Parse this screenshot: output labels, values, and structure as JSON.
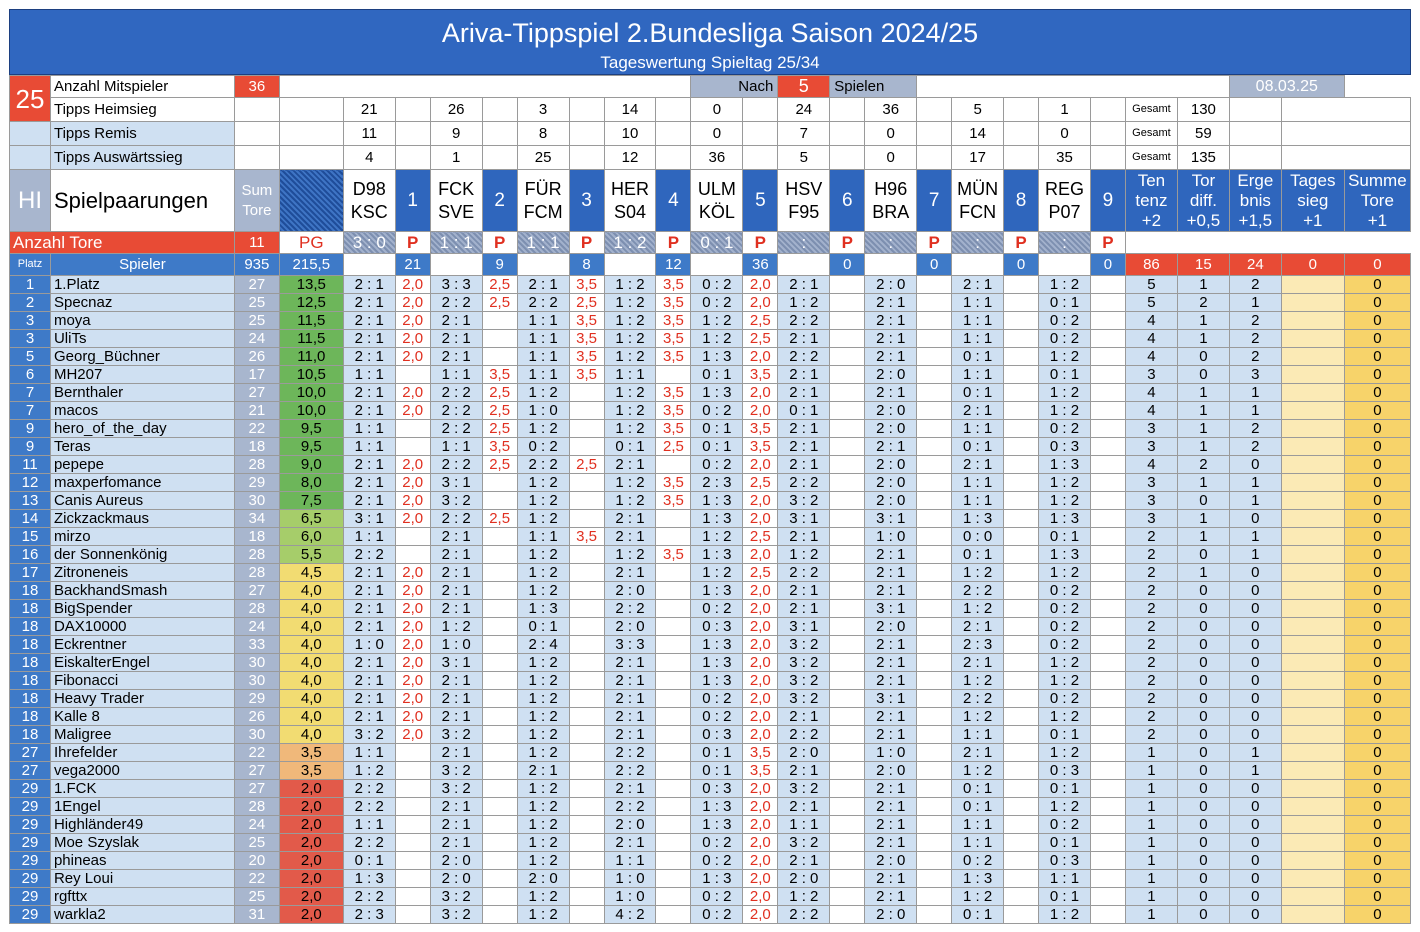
{
  "title": "Ariva-Tippspiel 2.Bundesliga Saison 2024/25",
  "subtitle": "Tageswertung Spieltag 25/34",
  "spieltag": "25",
  "info": {
    "mitspieler_label": "Anzahl Mitspieler",
    "mitspieler": "36",
    "nach": "Nach",
    "spiele_n": "5",
    "spiele": "Spielen",
    "date": "08.03.25",
    "heimsieg_label": "Tipps Heimsieg",
    "remis_label": "Tipps Remis",
    "auswaerts_label": "Tipps Auswärtssieg",
    "gesamt": "Gesamt",
    "hl": "HI",
    "paarungen": "Spielpaarungen",
    "sum_tore": "Sum Tore",
    "anzahl_tore": "Anzahl Tore",
    "tore_total": "11",
    "pg": "PG",
    "platz": "Platz",
    "spieler": "Spieler",
    "sum_total": "935",
    "pg_total": "215,5",
    "p": "P"
  },
  "tipps": {
    "heim": [
      "21",
      "26",
      "3",
      "14",
      "0",
      "24",
      "36",
      "5",
      "1"
    ],
    "remis": [
      "11",
      "9",
      "8",
      "10",
      "0",
      "7",
      "0",
      "14",
      "0"
    ],
    "aus": [
      "4",
      "1",
      "25",
      "12",
      "36",
      "5",
      "0",
      "17",
      "35"
    ],
    "gesamt": [
      "130",
      "59",
      "135"
    ]
  },
  "matches": [
    {
      "n": "1",
      "home": "D98",
      "away": "KSC",
      "res": "3 : 0",
      "pts": "21"
    },
    {
      "n": "2",
      "home": "FCK",
      "away": "SVE",
      "res": "1 : 1",
      "pts": "9"
    },
    {
      "n": "3",
      "home": "FÜR",
      "away": "FCM",
      "res": "1 : 1",
      "pts": "8"
    },
    {
      "n": "4",
      "home": "HER",
      "away": "S04",
      "res": "1 : 2",
      "pts": "12"
    },
    {
      "n": "5",
      "home": "ULM",
      "away": "KÖL",
      "res": "0 : 1",
      "pts": "36"
    },
    {
      "n": "6",
      "home": "HSV",
      "away": "F95",
      "res": ":",
      "pts": "0"
    },
    {
      "n": "7",
      "home": "H96",
      "away": "BRA",
      "res": ":",
      "pts": "0"
    },
    {
      "n": "8",
      "home": "MÜN",
      "away": "FCN",
      "res": ":",
      "pts": "0"
    },
    {
      "n": "9",
      "home": "REG",
      "away": "P07",
      "res": ":",
      "pts": "0"
    }
  ],
  "bonus_headers": [
    [
      "Ten",
      "tenz",
      "+2"
    ],
    [
      "Tor",
      "diff.",
      "+0,5"
    ],
    [
      "Erge",
      "bnis",
      "+1,5"
    ],
    [
      "Tages",
      "sieg",
      "+1"
    ],
    [
      "Summe",
      "Tore",
      "+1"
    ]
  ],
  "bonus_totals": [
    "86",
    "15",
    "24",
    "0",
    "0"
  ],
  "players": [
    [
      "1",
      "1.Platz",
      "27",
      "13,5",
      "2 : 1",
      "2,0",
      "3 : 3",
      "2,5",
      "2 : 1",
      "3,5",
      "1 : 2",
      "3,5",
      "0 : 2",
      "2,0",
      "2 : 1",
      "",
      "2 : 0",
      "",
      "2 : 1",
      "",
      "1 : 2",
      "",
      "5",
      "1",
      "2",
      "",
      "0"
    ],
    [
      "2",
      "Specnaz",
      "25",
      "12,5",
      "2 : 1",
      "2,0",
      "2 : 2",
      "2,5",
      "2 : 2",
      "2,5",
      "1 : 2",
      "3,5",
      "0 : 2",
      "2,0",
      "1 : 2",
      "",
      "2 : 1",
      "",
      "1 : 1",
      "",
      "0 : 1",
      "",
      "5",
      "2",
      "1",
      "",
      "0"
    ],
    [
      "3",
      "moya",
      "25",
      "11,5",
      "2 : 1",
      "2,0",
      "2 : 1",
      "",
      "1 : 1",
      "3,5",
      "1 : 2",
      "3,5",
      "1 : 2",
      "2,5",
      "2 : 2",
      "",
      "2 : 1",
      "",
      "1 : 1",
      "",
      "0 : 2",
      "",
      "4",
      "1",
      "2",
      "",
      "0"
    ],
    [
      "3",
      "UliTs",
      "24",
      "11,5",
      "2 : 1",
      "2,0",
      "2 : 1",
      "",
      "1 : 1",
      "3,5",
      "1 : 2",
      "3,5",
      "1 : 2",
      "2,5",
      "2 : 1",
      "",
      "2 : 1",
      "",
      "1 : 1",
      "",
      "0 : 2",
      "",
      "4",
      "1",
      "2",
      "",
      "0"
    ],
    [
      "5",
      "Georg_Büchner",
      "26",
      "11,0",
      "2 : 1",
      "2,0",
      "2 : 1",
      "",
      "1 : 1",
      "3,5",
      "1 : 2",
      "3,5",
      "1 : 3",
      "2,0",
      "2 : 2",
      "",
      "2 : 1",
      "",
      "0 : 1",
      "",
      "1 : 2",
      "",
      "4",
      "0",
      "2",
      "",
      "0"
    ],
    [
      "6",
      "MH207",
      "17",
      "10,5",
      "1 : 1",
      "",
      "1 : 1",
      "3,5",
      "1 : 1",
      "3,5",
      "1 : 1",
      "",
      "0 : 1",
      "3,5",
      "2 : 1",
      "",
      "2 : 0",
      "",
      "1 : 1",
      "",
      "0 : 1",
      "",
      "3",
      "0",
      "3",
      "",
      "0"
    ],
    [
      "7",
      "Bernthaler",
      "27",
      "10,0",
      "2 : 1",
      "2,0",
      "2 : 2",
      "2,5",
      "1 : 2",
      "",
      "1 : 2",
      "3,5",
      "1 : 3",
      "2,0",
      "2 : 1",
      "",
      "2 : 1",
      "",
      "0 : 1",
      "",
      "1 : 2",
      "",
      "4",
      "1",
      "1",
      "",
      "0"
    ],
    [
      "7",
      "macos",
      "21",
      "10,0",
      "2 : 1",
      "2,0",
      "2 : 2",
      "2,5",
      "1 : 0",
      "",
      "1 : 2",
      "3,5",
      "0 : 2",
      "2,0",
      "0 : 1",
      "",
      "2 : 0",
      "",
      "2 : 1",
      "",
      "1 : 2",
      "",
      "4",
      "1",
      "1",
      "",
      "0"
    ],
    [
      "9",
      "hero_of_the_day",
      "22",
      "9,5",
      "1 : 1",
      "",
      "2 : 2",
      "2,5",
      "1 : 2",
      "",
      "1 : 2",
      "3,5",
      "0 : 1",
      "3,5",
      "2 : 1",
      "",
      "2 : 0",
      "",
      "1 : 1",
      "",
      "0 : 2",
      "",
      "3",
      "1",
      "2",
      "",
      "0"
    ],
    [
      "9",
      "Teras",
      "18",
      "9,5",
      "1 : 1",
      "",
      "1 : 1",
      "3,5",
      "0 : 2",
      "",
      "0 : 1",
      "2,5",
      "0 : 1",
      "3,5",
      "2 : 1",
      "",
      "2 : 1",
      "",
      "0 : 1",
      "",
      "0 : 3",
      "",
      "3",
      "1",
      "2",
      "",
      "0"
    ],
    [
      "11",
      "pepepe",
      "28",
      "9,0",
      "2 : 1",
      "2,0",
      "2 : 2",
      "2,5",
      "2 : 2",
      "2,5",
      "2 : 1",
      "",
      "0 : 2",
      "2,0",
      "2 : 1",
      "",
      "2 : 0",
      "",
      "2 : 1",
      "",
      "1 : 3",
      "",
      "4",
      "2",
      "0",
      "",
      "0"
    ],
    [
      "12",
      "maxperfomance",
      "29",
      "8,0",
      "2 : 1",
      "2,0",
      "3 : 1",
      "",
      "1 : 2",
      "",
      "1 : 2",
      "3,5",
      "2 : 3",
      "2,5",
      "2 : 2",
      "",
      "2 : 0",
      "",
      "1 : 1",
      "",
      "1 : 2",
      "",
      "3",
      "1",
      "1",
      "",
      "0"
    ],
    [
      "13",
      "Canis Aureus",
      "30",
      "7,5",
      "2 : 1",
      "2,0",
      "3 : 2",
      "",
      "1 : 2",
      "",
      "1 : 2",
      "3,5",
      "1 : 3",
      "2,0",
      "3 : 2",
      "",
      "2 : 0",
      "",
      "1 : 1",
      "",
      "1 : 2",
      "",
      "3",
      "0",
      "1",
      "",
      "0"
    ],
    [
      "14",
      "Zickzackmaus",
      "34",
      "6,5",
      "3 : 1",
      "2,0",
      "2 : 2",
      "2,5",
      "1 : 2",
      "",
      "2 : 1",
      "",
      "1 : 3",
      "2,0",
      "3 : 1",
      "",
      "3 : 1",
      "",
      "1 : 3",
      "",
      "1 : 3",
      "",
      "3",
      "1",
      "0",
      "",
      "0"
    ],
    [
      "15",
      "mirzo",
      "18",
      "6,0",
      "1 : 1",
      "",
      "2 : 1",
      "",
      "1 : 1",
      "3,5",
      "2 : 1",
      "",
      "1 : 2",
      "2,5",
      "2 : 1",
      "",
      "1 : 0",
      "",
      "0 : 0",
      "",
      "0 : 1",
      "",
      "2",
      "1",
      "1",
      "",
      "0"
    ],
    [
      "16",
      "der Sonnenkönig",
      "28",
      "5,5",
      "2 : 2",
      "",
      "2 : 1",
      "",
      "1 : 2",
      "",
      "1 : 2",
      "3,5",
      "1 : 3",
      "2,0",
      "1 : 2",
      "",
      "2 : 1",
      "",
      "0 : 1",
      "",
      "1 : 3",
      "",
      "2",
      "0",
      "1",
      "",
      "0"
    ],
    [
      "17",
      "Zitroneneis",
      "28",
      "4,5",
      "2 : 1",
      "2,0",
      "2 : 1",
      "",
      "1 : 2",
      "",
      "2 : 1",
      "",
      "1 : 2",
      "2,5",
      "2 : 2",
      "",
      "2 : 1",
      "",
      "1 : 2",
      "",
      "1 : 2",
      "",
      "2",
      "1",
      "0",
      "",
      "0"
    ],
    [
      "18",
      "BackhandSmash",
      "27",
      "4,0",
      "2 : 1",
      "2,0",
      "2 : 1",
      "",
      "1 : 2",
      "",
      "2 : 0",
      "",
      "1 : 3",
      "2,0",
      "2 : 1",
      "",
      "2 : 1",
      "",
      "2 : 2",
      "",
      "0 : 2",
      "",
      "2",
      "0",
      "0",
      "",
      "0"
    ],
    [
      "18",
      "BigSpender",
      "28",
      "4,0",
      "2 : 1",
      "2,0",
      "2 : 1",
      "",
      "1 : 3",
      "",
      "2 : 2",
      "",
      "0 : 2",
      "2,0",
      "2 : 1",
      "",
      "3 : 1",
      "",
      "1 : 2",
      "",
      "0 : 2",
      "",
      "2",
      "0",
      "0",
      "",
      "0"
    ],
    [
      "18",
      "DAX10000",
      "24",
      "4,0",
      "2 : 1",
      "2,0",
      "1 : 2",
      "",
      "0 : 1",
      "",
      "2 : 0",
      "",
      "0 : 3",
      "2,0",
      "3 : 1",
      "",
      "2 : 0",
      "",
      "2 : 1",
      "",
      "0 : 2",
      "",
      "2",
      "0",
      "0",
      "",
      "0"
    ],
    [
      "18",
      "Eckrentner",
      "33",
      "4,0",
      "1 : 0",
      "2,0",
      "1 : 0",
      "",
      "2 : 4",
      "",
      "3 : 3",
      "",
      "1 : 3",
      "2,0",
      "3 : 2",
      "",
      "2 : 1",
      "",
      "2 : 3",
      "",
      "0 : 2",
      "",
      "2",
      "0",
      "0",
      "",
      "0"
    ],
    [
      "18",
      "EiskalterEngel",
      "30",
      "4,0",
      "2 : 1",
      "2,0",
      "3 : 1",
      "",
      "1 : 2",
      "",
      "2 : 1",
      "",
      "1 : 3",
      "2,0",
      "3 : 2",
      "",
      "2 : 1",
      "",
      "2 : 1",
      "",
      "1 : 2",
      "",
      "2",
      "0",
      "0",
      "",
      "0"
    ],
    [
      "18",
      "Fibonacci",
      "30",
      "4,0",
      "2 : 1",
      "2,0",
      "2 : 1",
      "",
      "1 : 2",
      "",
      "2 : 1",
      "",
      "1 : 3",
      "2,0",
      "3 : 2",
      "",
      "2 : 1",
      "",
      "1 : 2",
      "",
      "1 : 2",
      "",
      "2",
      "0",
      "0",
      "",
      "0"
    ],
    [
      "18",
      "Heavy Trader",
      "29",
      "4,0",
      "2 : 1",
      "2,0",
      "2 : 1",
      "",
      "1 : 2",
      "",
      "2 : 1",
      "",
      "0 : 2",
      "2,0",
      "3 : 2",
      "",
      "3 : 1",
      "",
      "2 : 2",
      "",
      "0 : 2",
      "",
      "2",
      "0",
      "0",
      "",
      "0"
    ],
    [
      "18",
      "Kalle 8",
      "26",
      "4,0",
      "2 : 1",
      "2,0",
      "2 : 1",
      "",
      "1 : 2",
      "",
      "2 : 1",
      "",
      "0 : 2",
      "2,0",
      "2 : 1",
      "",
      "2 : 1",
      "",
      "1 : 2",
      "",
      "1 : 2",
      "",
      "2",
      "0",
      "0",
      "",
      "0"
    ],
    [
      "18",
      "Maligree",
      "30",
      "4,0",
      "3 : 2",
      "2,0",
      "3 : 2",
      "",
      "1 : 2",
      "",
      "2 : 1",
      "",
      "0 : 3",
      "2,0",
      "2 : 2",
      "",
      "2 : 1",
      "",
      "1 : 1",
      "",
      "0 : 1",
      "",
      "2",
      "0",
      "0",
      "",
      "0"
    ],
    [
      "27",
      "Ihrefelder",
      "22",
      "3,5",
      "1 : 1",
      "",
      "2 : 1",
      "",
      "1 : 2",
      "",
      "2 : 2",
      "",
      "0 : 1",
      "3,5",
      "2 : 0",
      "",
      "1 : 0",
      "",
      "2 : 1",
      "",
      "1 : 2",
      "",
      "1",
      "0",
      "1",
      "",
      "0"
    ],
    [
      "27",
      "vega2000",
      "27",
      "3,5",
      "1 : 2",
      "",
      "3 : 2",
      "",
      "2 : 1",
      "",
      "2 : 2",
      "",
      "0 : 1",
      "3,5",
      "2 : 1",
      "",
      "2 : 0",
      "",
      "1 : 2",
      "",
      "0 : 3",
      "",
      "1",
      "0",
      "1",
      "",
      "0"
    ],
    [
      "29",
      "1.FCK",
      "27",
      "2,0",
      "2 : 2",
      "",
      "3 : 2",
      "",
      "1 : 2",
      "",
      "2 : 1",
      "",
      "0 : 3",
      "2,0",
      "3 : 2",
      "",
      "2 : 1",
      "",
      "0 : 1",
      "",
      "0 : 1",
      "",
      "1",
      "0",
      "0",
      "",
      "0"
    ],
    [
      "29",
      "1Engel",
      "28",
      "2,0",
      "2 : 2",
      "",
      "2 : 1",
      "",
      "1 : 2",
      "",
      "2 : 2",
      "",
      "1 : 3",
      "2,0",
      "2 : 1",
      "",
      "2 : 1",
      "",
      "0 : 1",
      "",
      "1 : 2",
      "",
      "1",
      "0",
      "0",
      "",
      "0"
    ],
    [
      "29",
      "Highländer49",
      "24",
      "2,0",
      "1 : 1",
      "",
      "2 : 1",
      "",
      "1 : 2",
      "",
      "2 : 0",
      "",
      "1 : 3",
      "2,0",
      "1 : 1",
      "",
      "2 : 1",
      "",
      "1 : 1",
      "",
      "0 : 2",
      "",
      "1",
      "0",
      "0",
      "",
      "0"
    ],
    [
      "29",
      "Moe Szyslak",
      "25",
      "2,0",
      "2 : 2",
      "",
      "2 : 1",
      "",
      "1 : 2",
      "",
      "2 : 1",
      "",
      "0 : 2",
      "2,0",
      "3 : 2",
      "",
      "2 : 1",
      "",
      "1 : 1",
      "",
      "0 : 1",
      "",
      "1",
      "0",
      "0",
      "",
      "0"
    ],
    [
      "29",
      "phineas",
      "20",
      "2,0",
      "0 : 1",
      "",
      "2 : 0",
      "",
      "1 : 2",
      "",
      "1 : 1",
      "",
      "0 : 2",
      "2,0",
      "2 : 1",
      "",
      "2 : 0",
      "",
      "0 : 2",
      "",
      "0 : 3",
      "",
      "1",
      "0",
      "0",
      "",
      "0"
    ],
    [
      "29",
      "Rey Loui",
      "22",
      "2,0",
      "1 : 3",
      "",
      "2 : 0",
      "",
      "2 : 0",
      "",
      "1 : 0",
      "",
      "1 : 3",
      "2,0",
      "2 : 0",
      "",
      "2 : 1",
      "",
      "1 : 3",
      "",
      "1 : 1",
      "",
      "1",
      "0",
      "0",
      "",
      "0"
    ],
    [
      "29",
      "rgfttx",
      "25",
      "2,0",
      "2 : 2",
      "",
      "3 : 2",
      "",
      "1 : 2",
      "",
      "1 : 0",
      "",
      "0 : 2",
      "2,0",
      "1 : 2",
      "",
      "2 : 1",
      "",
      "1 : 2",
      "",
      "0 : 1",
      "",
      "1",
      "0",
      "0",
      "",
      "0"
    ],
    [
      "29",
      "warkla2",
      "31",
      "2,0",
      "2 : 3",
      "",
      "3 : 2",
      "",
      "1 : 2",
      "",
      "4 : 2",
      "",
      "0 : 2",
      "2,0",
      "2 : 2",
      "",
      "2 : 0",
      "",
      "0 : 1",
      "",
      "1 : 2",
      "",
      "1",
      "0",
      "0",
      "",
      "0"
    ]
  ],
  "colors": {
    "title_bg": "#3067c0",
    "header_bg": "#2f66bd",
    "red": "#e84b35",
    "light_blue": "#cfe0f2",
    "grey": "#a8b6ce",
    "score_green": "#5fb257",
    "score_red": "#e0493d",
    "yellow": "#fbeab5",
    "gold": "#f7d36a"
  }
}
